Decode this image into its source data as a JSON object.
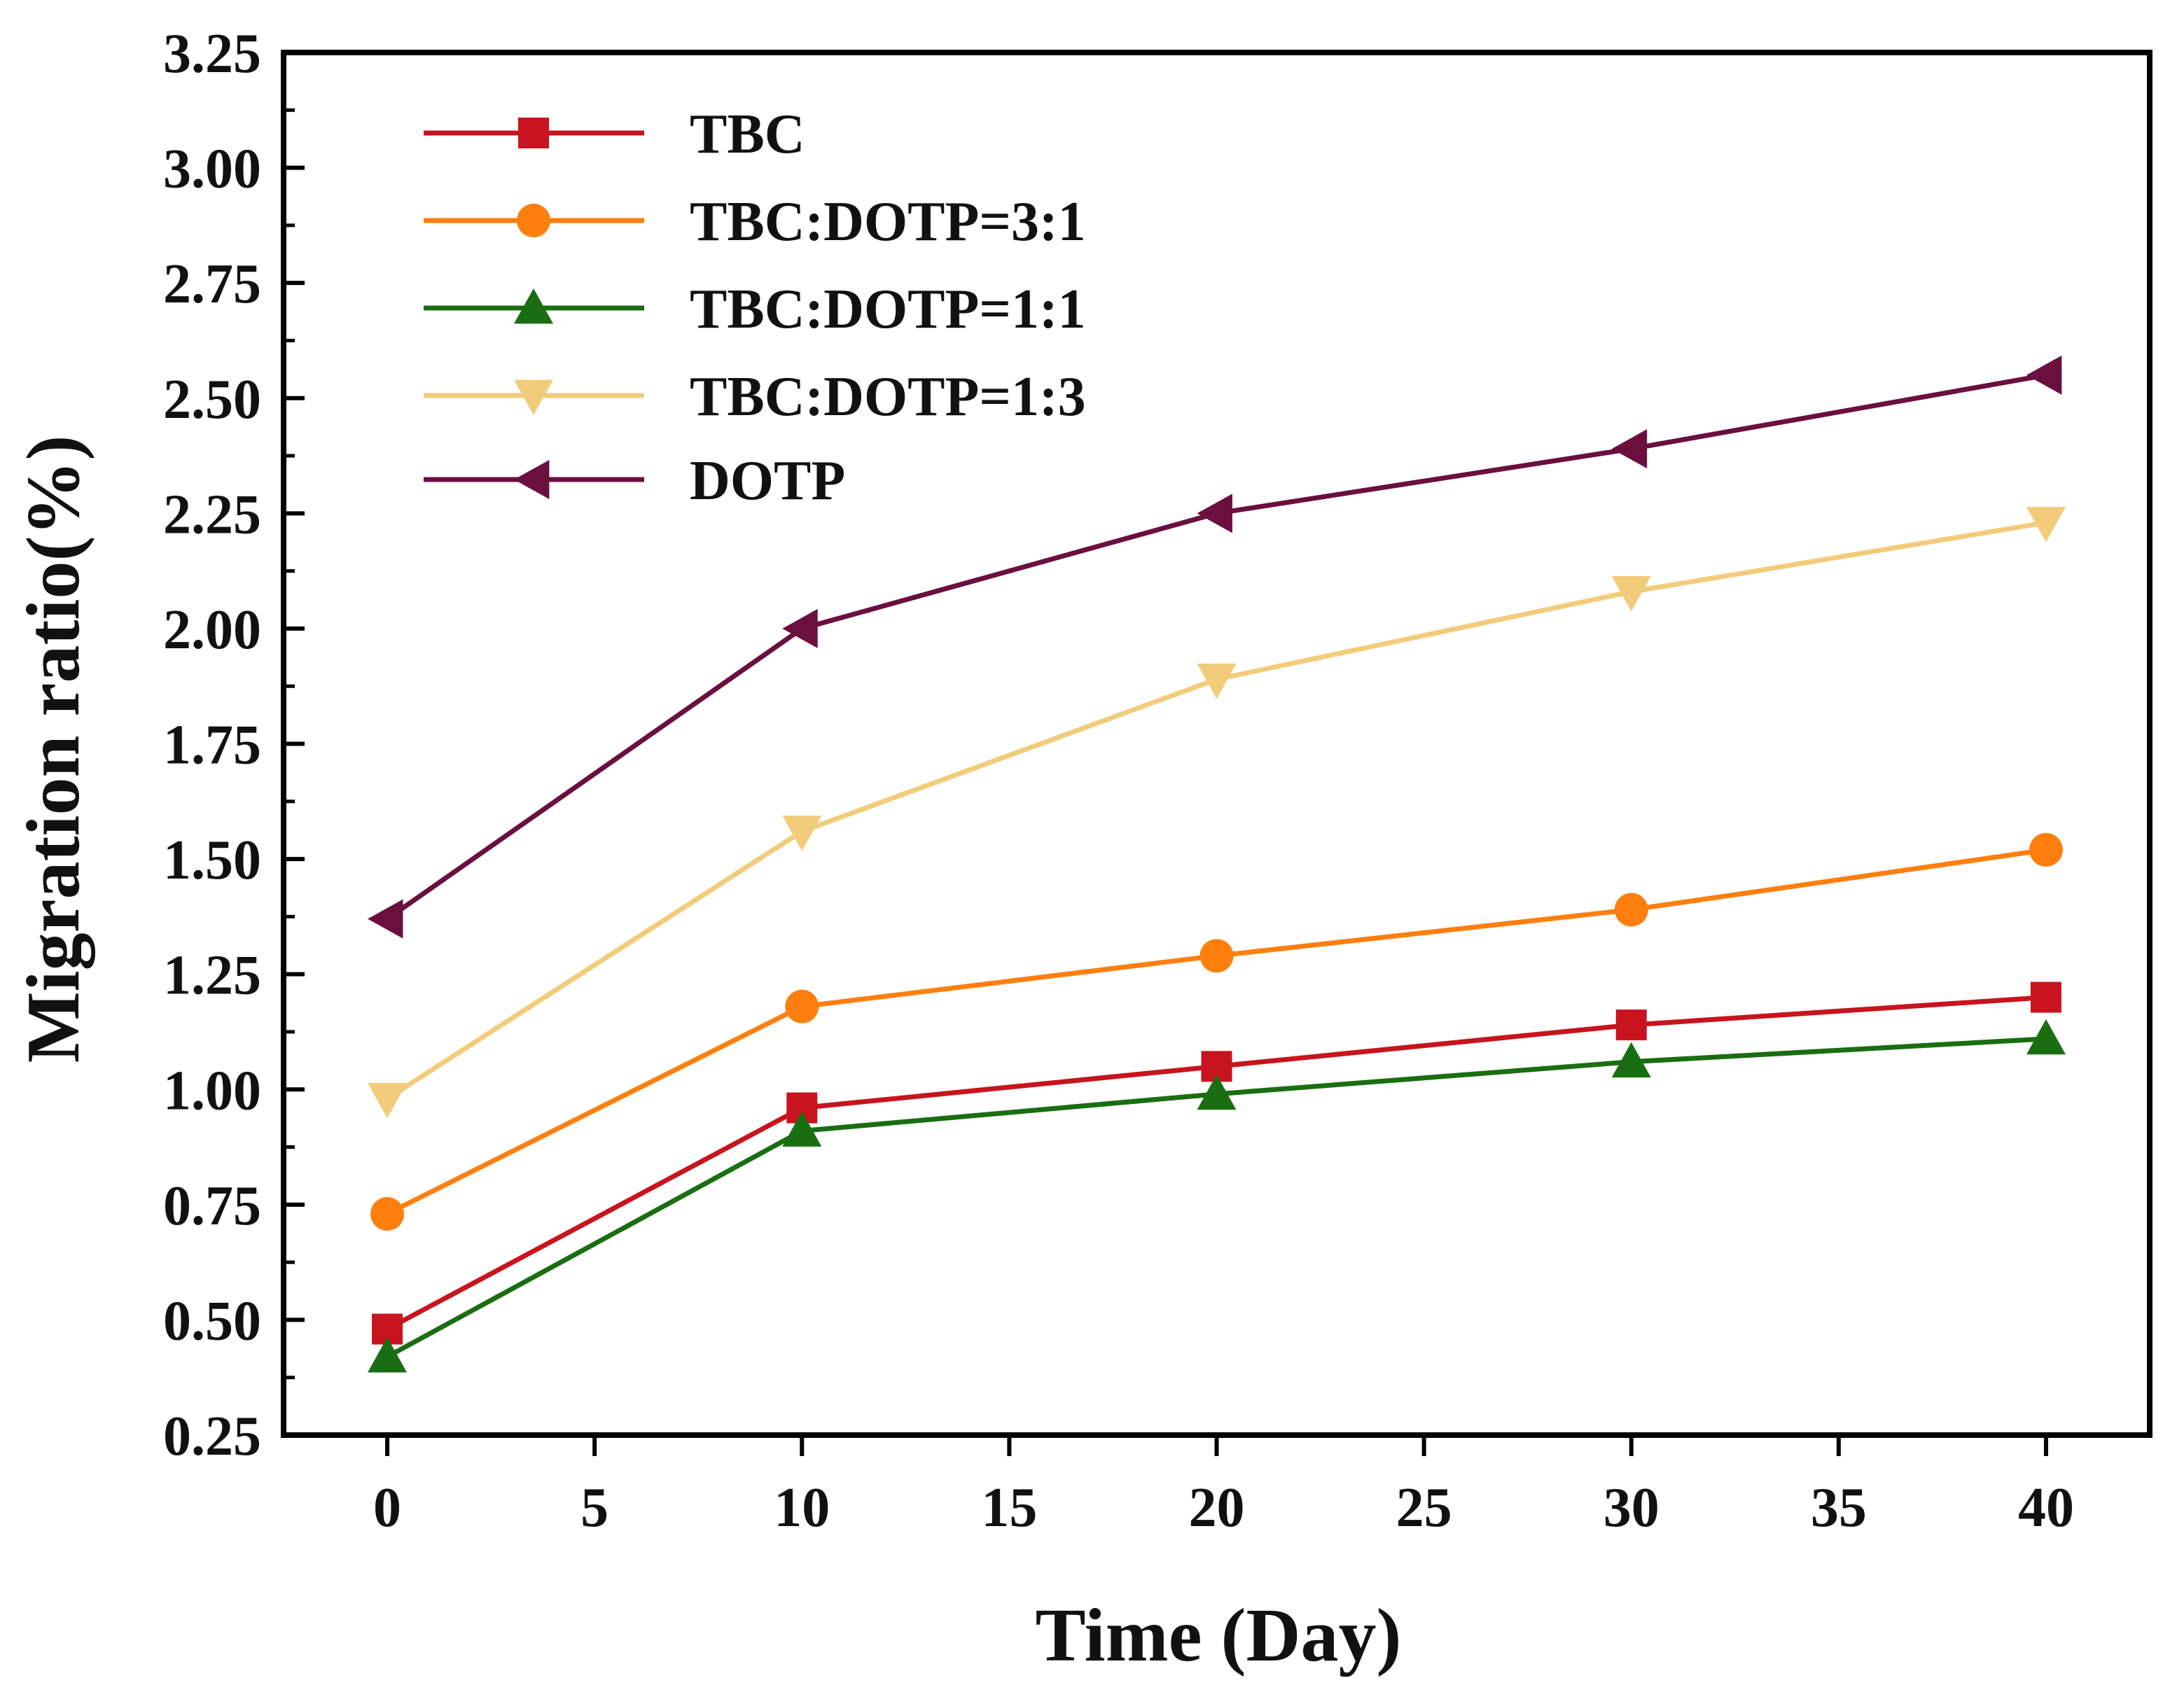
{
  "chart_data": {
    "type": "line",
    "xlabel": "Time (Day)",
    "ylabel": "Migration ratio(%)",
    "xlim": [
      -2.5,
      42.5
    ],
    "ylim": [
      0.25,
      3.25
    ],
    "xticks": [
      0,
      5,
      10,
      15,
      20,
      25,
      30,
      35,
      40
    ],
    "xtick_labels": [
      "0",
      "5",
      "10",
      "15",
      "20",
      "25",
      "30",
      "35",
      "40"
    ],
    "yticks": [
      0.25,
      0.5,
      0.75,
      1.0,
      1.25,
      1.5,
      1.75,
      2.0,
      2.25,
      2.5,
      2.75,
      3.0,
      3.25
    ],
    "ytick_labels": [
      "0.25",
      "0.50",
      "0.75",
      "1.00",
      "1.25",
      "1.50",
      "1.75",
      "2.00",
      "2.25",
      "2.50",
      "2.75",
      "3.00",
      "3.25"
    ],
    "grid": false,
    "legend_position": "top-left",
    "x": [
      0,
      10,
      20,
      30,
      40
    ],
    "series": [
      {
        "name": "TBC",
        "color": "#c8141e",
        "marker": "square",
        "values": [
          0.48,
          0.96,
          1.05,
          1.14,
          1.2
        ]
      },
      {
        "name": "TBC:DOTP=3:1",
        "color": "#ff7f0e",
        "marker": "circle",
        "values": [
          0.73,
          1.18,
          1.29,
          1.39,
          1.52
        ]
      },
      {
        "name": "TBC:DOTP=1:1",
        "color": "#1a6e12",
        "marker": "triangle-up",
        "values": [
          0.42,
          0.91,
          0.99,
          1.06,
          1.11
        ]
      },
      {
        "name": "TBC:DOTP=1:3",
        "color": "#f2cc7a",
        "marker": "triangle-down",
        "values": [
          0.98,
          1.56,
          1.89,
          2.08,
          2.23
        ]
      },
      {
        "name": "DOTP",
        "color": "#6b0f3f",
        "marker": "triangle-left",
        "values": [
          1.37,
          2.0,
          2.25,
          2.39,
          2.55
        ]
      }
    ]
  }
}
